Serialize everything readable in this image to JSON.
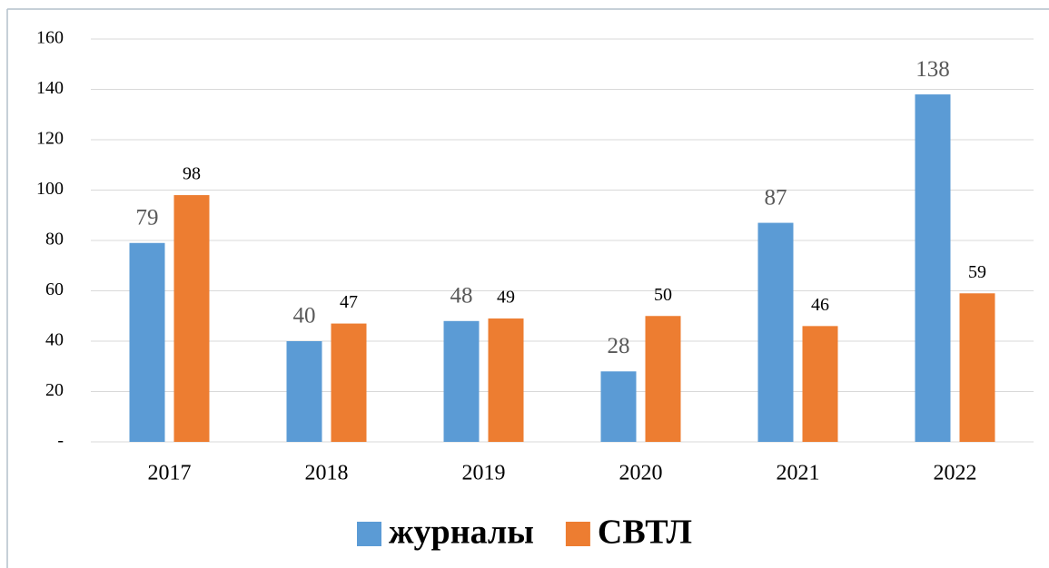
{
  "chart_data": {
    "type": "bar",
    "categories": [
      "2017",
      "2018",
      "2019",
      "2020",
      "2021",
      "2022"
    ],
    "series": [
      {
        "name": "журналы",
        "color": "#5b9bd5",
        "values": [
          79,
          40,
          48,
          28,
          87,
          138
        ]
      },
      {
        "name": "СВТЛ",
        "color": "#ed7d31",
        "values": [
          98,
          47,
          49,
          50,
          46,
          59
        ]
      }
    ],
    "ylim": [
      0,
      160
    ],
    "yticks": [
      {
        "value": 0,
        "label": "-"
      },
      20,
      40,
      60,
      80,
      100,
      120,
      140,
      160
    ],
    "grid": true,
    "legend": "bottom"
  }
}
